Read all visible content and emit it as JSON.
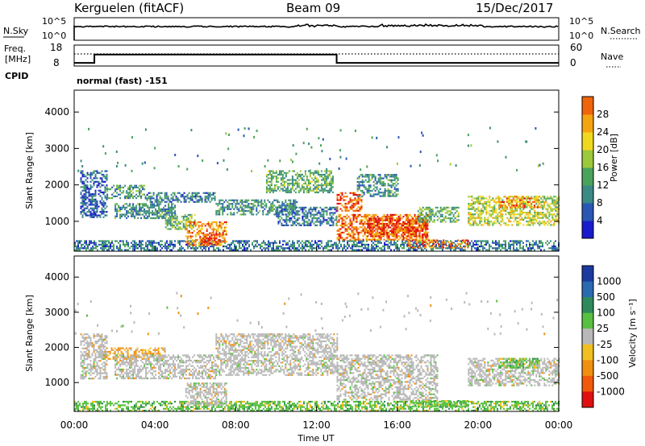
{
  "header": {
    "station": "Kerguelen (fitACF)",
    "beam": "Beam 09",
    "date": "15/Dec/2017"
  },
  "nsky_panel": {
    "left_label": "N.Sky",
    "left_ticks": [
      "10^5",
      "10^0"
    ],
    "right_ticks": [
      "10^5",
      "10^0"
    ],
    "right_label": "N.Search"
  },
  "freq_panel": {
    "label_line1": "Freq.",
    "label_line2": "[MHz]",
    "left_ticks": [
      "18",
      "8"
    ],
    "right_ticks": [
      "60",
      "0"
    ],
    "right_label": "Nave",
    "freq_segments_mhz": [
      {
        "start_ut": 0,
        "end_ut": 1,
        "value": 9.5
      },
      {
        "start_ut": 1,
        "end_ut": 13,
        "value": 13.5
      },
      {
        "start_ut": 13,
        "end_ut": 24,
        "value": 9.5
      }
    ]
  },
  "cpid": {
    "label": "CPID",
    "text": "normal (fast) -151"
  },
  "chart_data": [
    {
      "type": "heatmap",
      "name": "power",
      "ylabel": "Slant Range [km]",
      "yticks": [
        "1000",
        "2000",
        "3000",
        "4000"
      ],
      "ylim": [
        180,
        4600
      ],
      "xlim": [
        0,
        24
      ],
      "colorbar": {
        "label": "Power [dB]",
        "ticks": [
          "4",
          "8",
          "12",
          "16",
          "20",
          "24",
          "28"
        ],
        "range": [
          0,
          32
        ],
        "colors": [
          "#1a1acd",
          "#2a56b4",
          "#3a8a86",
          "#4aa35b",
          "#9cc83c",
          "#f0d820",
          "#f5a411",
          "#f0650a",
          "#e01010"
        ]
      },
      "echo_regions": [
        {
          "t0": 0.0,
          "t1": 24.0,
          "r0": 200,
          "r1": 480,
          "level": 0.25
        },
        {
          "t0": 0.3,
          "t1": 1.6,
          "r0": 1100,
          "r1": 2400,
          "level": 0.2
        },
        {
          "t0": 1.6,
          "t1": 3.5,
          "r0": 1650,
          "r1": 2000,
          "level": 0.35
        },
        {
          "t0": 2.0,
          "t1": 5.0,
          "r0": 1100,
          "r1": 1500,
          "level": 0.3
        },
        {
          "t0": 3.5,
          "t1": 7.0,
          "r0": 1550,
          "r1": 1800,
          "level": 0.25
        },
        {
          "t0": 4.5,
          "t1": 6.0,
          "r0": 800,
          "r1": 1200,
          "level": 0.4
        },
        {
          "t0": 5.5,
          "t1": 7.5,
          "r0": 350,
          "r1": 1000,
          "level": 0.75
        },
        {
          "t0": 6.2,
          "t1": 7.2,
          "r0": 400,
          "r1": 700,
          "level": 0.9
        },
        {
          "t0": 7.0,
          "t1": 11.0,
          "r0": 1200,
          "r1": 1600,
          "level": 0.3
        },
        {
          "t0": 9.5,
          "t1": 12.8,
          "r0": 1800,
          "r1": 2400,
          "level": 0.4
        },
        {
          "t0": 10.0,
          "t1": 13.0,
          "r0": 900,
          "r1": 1400,
          "level": 0.25
        },
        {
          "t0": 13.0,
          "t1": 14.2,
          "r0": 1300,
          "r1": 1800,
          "level": 0.85
        },
        {
          "t0": 13.0,
          "t1": 17.5,
          "r0": 500,
          "r1": 1200,
          "level": 0.8
        },
        {
          "t0": 14.5,
          "t1": 17.5,
          "r0": 600,
          "r1": 1100,
          "level": 0.9
        },
        {
          "t0": 14.0,
          "t1": 16.0,
          "r0": 1700,
          "r1": 2300,
          "level": 0.3
        },
        {
          "t0": 16.5,
          "t1": 19.5,
          "r0": 300,
          "r1": 500,
          "level": 0.8
        },
        {
          "t0": 17.0,
          "t1": 19.0,
          "r0": 1000,
          "r1": 1400,
          "level": 0.4
        },
        {
          "t0": 19.5,
          "t1": 24.0,
          "r0": 900,
          "r1": 1700,
          "level": 0.55
        },
        {
          "t0": 21.0,
          "t1": 23.0,
          "r0": 1400,
          "r1": 1700,
          "level": 0.75
        }
      ]
    },
    {
      "type": "heatmap",
      "name": "velocity",
      "ylabel": "Slant Range [km]",
      "yticks": [
        "1000",
        "2000",
        "3000",
        "4000"
      ],
      "ylim": [
        180,
        4600
      ],
      "xlim": [
        0,
        24
      ],
      "xticks": [
        "00:00",
        "04:00",
        "08:00",
        "12:00",
        "16:00",
        "20:00",
        "00:00"
      ],
      "xlabel": "Time UT",
      "colorbar": {
        "label": "Velocity [m s⁻¹]",
        "ticks": [
          "1000",
          "500",
          "100",
          "25",
          "-25",
          "-100",
          "-500",
          "-1000"
        ],
        "colors": [
          "#1a3aa0",
          "#2a6ab0",
          "#2e8a5a",
          "#58c040",
          "#b8b8b8",
          "#f0c020",
          "#f09010",
          "#f05a0a",
          "#e01010"
        ]
      },
      "echo_regions": [
        {
          "t0": 0.0,
          "t1": 24.0,
          "r0": 200,
          "r1": 480,
          "kind": "green"
        },
        {
          "t0": 0.3,
          "t1": 1.6,
          "r0": 1100,
          "r1": 2400,
          "kind": "gray"
        },
        {
          "t0": 1.5,
          "t1": 4.5,
          "r0": 1650,
          "r1": 2000,
          "kind": "orange"
        },
        {
          "t0": 2.0,
          "t1": 7.0,
          "r0": 1100,
          "r1": 1800,
          "kind": "gray"
        },
        {
          "t0": 5.5,
          "t1": 7.5,
          "r0": 350,
          "r1": 1000,
          "kind": "gray"
        },
        {
          "t0": 7.0,
          "t1": 13.0,
          "r0": 1200,
          "r1": 2400,
          "kind": "gray"
        },
        {
          "t0": 13.0,
          "t1": 18.0,
          "r0": 500,
          "r1": 1800,
          "kind": "gray"
        },
        {
          "t0": 16.5,
          "t1": 19.5,
          "r0": 300,
          "r1": 500,
          "kind": "green"
        },
        {
          "t0": 19.5,
          "t1": 24.0,
          "r0": 900,
          "r1": 1700,
          "kind": "gray"
        },
        {
          "t0": 21.0,
          "t1": 23.0,
          "r0": 1400,
          "r1": 1700,
          "kind": "green"
        }
      ]
    }
  ]
}
